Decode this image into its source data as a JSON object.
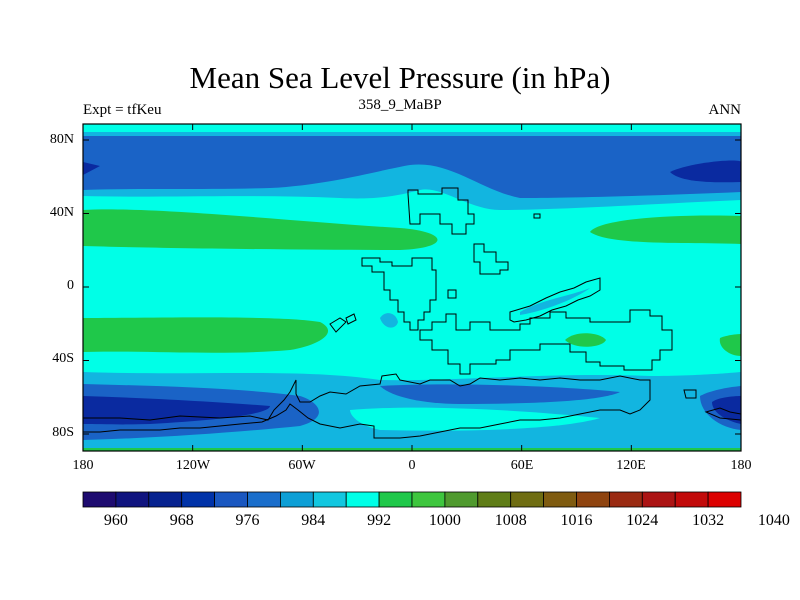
{
  "title": "Mean Sea Level Pressure (in hPa)",
  "subtitle": "358_9_MaBP",
  "left_label": "Expt = tfKeu",
  "right_label": "ANN",
  "lat_labels": [
    "80N",
    "40N",
    "0",
    "40S",
    "80S"
  ],
  "lon_labels": [
    "180",
    "120W",
    "60W",
    "0",
    "60E",
    "120E",
    "180"
  ],
  "colorbar_labels": [
    "960",
    "968",
    "976",
    "984",
    "992",
    "1000",
    "1008",
    "1016",
    "1024",
    "1032",
    "1040"
  ],
  "colorbar_colors": [
    "#1e0b70",
    "#10147f",
    "#06228f",
    "#0032a8",
    "#1a57c0",
    "#1a6ecb",
    "#0d9fd6",
    "#12c7e0",
    "#00ffe7",
    "#1fc84a",
    "#3ec63e",
    "#4f9a2e",
    "#5f7d17",
    "#6f6d12",
    "#7f5b10",
    "#8f4410",
    "#9a2a12",
    "#ac1414",
    "#c20a0a",
    "#dc0000"
  ],
  "colors": {
    "deep_low": "#0a2aa0",
    "low": "#1a63c6",
    "mid": "#12b5e0",
    "normal": "#00ffe7",
    "high": "#1fc84a"
  }
}
